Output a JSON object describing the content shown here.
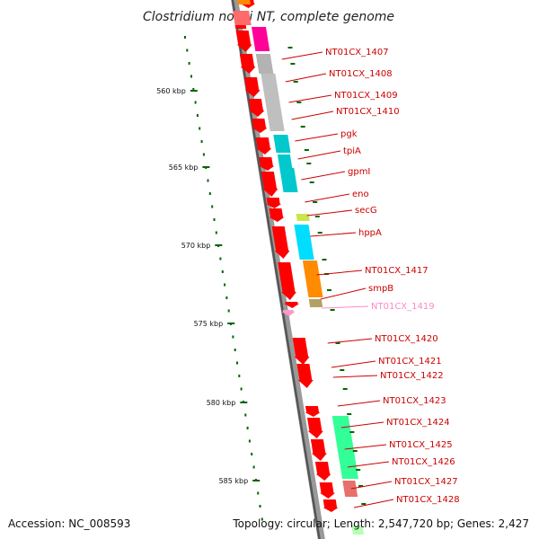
{
  "title": "Clostridium novyi NT, complete genome",
  "accession": "Accession: NC_008593",
  "stats": "Topology: circular; Length: 2,547,720 bp; Genes: 2,427",
  "colors": {
    "forward_cds": "#ff0000",
    "backbone": "#999999",
    "tick": "#006600",
    "label": "#cc0000",
    "label_pseudo": "#ff88cc"
  },
  "kbp_labels": [
    "560 kbp",
    "565 kbp",
    "570 kbp",
    "575 kbp",
    "580 kbp",
    "585 kbp"
  ],
  "gene_labels": [
    {
      "text": "NT01CX_1407"
    },
    {
      "text": "NT01CX_1408"
    },
    {
      "text": "NT01CX_1409"
    },
    {
      "text": "NT01CX_1410"
    },
    {
      "text": "pgk"
    },
    {
      "text": "tpiA"
    },
    {
      "text": "gpmI"
    },
    {
      "text": "eno"
    },
    {
      "text": "secG"
    },
    {
      "text": "hppA"
    },
    {
      "text": "NT01CX_1417"
    },
    {
      "text": "smpB"
    },
    {
      "text": "NT01CX_1419",
      "pseudo": true
    },
    {
      "text": "NT01CX_1420"
    },
    {
      "text": "NT01CX_1421"
    },
    {
      "text": "NT01CX_1422"
    },
    {
      "text": "NT01CX_1423"
    },
    {
      "text": "NT01CX_1424"
    },
    {
      "text": "NT01CX_1425"
    },
    {
      "text": "NT01CX_1426"
    },
    {
      "text": "NT01CX_1427"
    },
    {
      "text": "NT01CX_1428"
    }
  ]
}
